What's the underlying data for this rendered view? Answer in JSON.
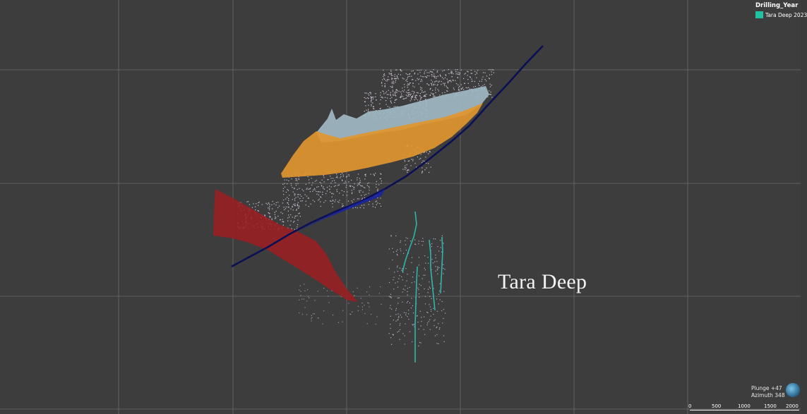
{
  "legend": {
    "title": "Drilling_Year",
    "items": [
      {
        "label": "Tara Deep 2023",
        "color": "#22c0a4"
      }
    ]
  },
  "annotation": {
    "text": "Tara Deep"
  },
  "view": {
    "plunge": "Plunge +47",
    "azimuth": "Azimuth 348"
  },
  "scale": {
    "ticks": [
      "0",
      "500",
      "1000",
      "1500",
      "2000"
    ]
  },
  "colors": {
    "background": "#3d3d3d",
    "grid": "#6b6b6b",
    "fault_line": "#0b0f55",
    "orange_surface": "#e0962e",
    "grey_surface": "#9fb9c4",
    "red_surface": "#9a1f22",
    "drillhole": "#2fb5a8"
  }
}
